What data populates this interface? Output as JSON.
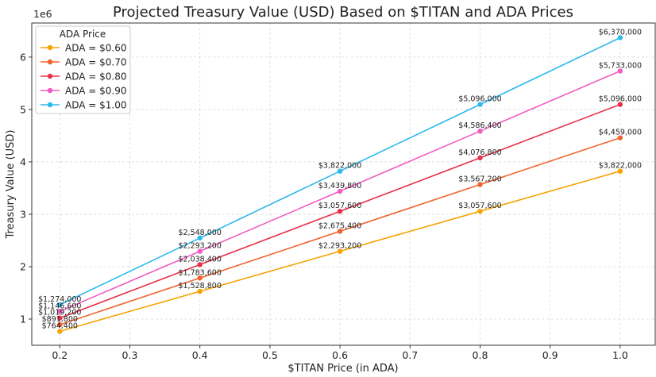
{
  "chart_data": {
    "type": "line",
    "title": "Projected Treasury Value (USD) Based on $TITAN and ADA Prices",
    "xlabel": "$TITAN Price (in ADA)",
    "ylabel": "Treasury Value (USD)",
    "y_offset_label": "1e6",
    "xlim": [
      0.16,
      1.05
    ],
    "ylim": [
      0.5,
      6.65
    ],
    "x_ticks": [
      "0.2",
      "0.3",
      "0.4",
      "0.5",
      "0.6",
      "0.7",
      "0.8",
      "0.9",
      "1.0"
    ],
    "y_ticks": [
      "1",
      "2",
      "3",
      "4",
      "5",
      "6"
    ],
    "grid": true,
    "legend_title": "ADA Price",
    "legend_position": "top-left",
    "x": [
      0.2,
      0.4,
      0.6,
      0.8,
      1.0
    ],
    "series": [
      {
        "name": "ADA = $0.60",
        "color": "#f5a300",
        "values": [
          764400,
          1528800,
          2293200,
          3057600,
          3822000
        ],
        "labels": [
          "$764,400",
          "$1,528,800",
          "$2,293,200",
          "$3,057,600",
          "$3,822,000"
        ]
      },
      {
        "name": "ADA = $0.70",
        "color": "#f0622b",
        "values": [
          891800,
          1783600,
          2675400,
          3567200,
          4459000
        ],
        "labels": [
          "$891,800",
          "$1,783,600",
          "$2,675,400",
          "$3,567,200",
          "$4,459,000"
        ]
      },
      {
        "name": "ADA = $0.80",
        "color": "#e8304a",
        "values": [
          1019200,
          2038400,
          3057600,
          4076800,
          5096000
        ],
        "labels": [
          "$1,019,200",
          "$2,038,400",
          "$3,057,600",
          "$4,076,800",
          "$5,096,000"
        ]
      },
      {
        "name": "ADA = $0.90",
        "color": "#f05cc0",
        "values": [
          1146600,
          2293200,
          3439800,
          4586400,
          5733000
        ],
        "labels": [
          "$1,146,600",
          "$2,293,200",
          "$3,439,800",
          "$4,586,400",
          "$5,733,000"
        ]
      },
      {
        "name": "ADA = $1.00",
        "color": "#2bb9ee",
        "values": [
          1274000,
          2548000,
          3822000,
          5096000,
          6370000
        ],
        "labels": [
          "$1,274,000",
          "$2,548,000",
          "$3,822,000",
          "$5,096,000",
          "$6,370,000"
        ]
      }
    ]
  }
}
